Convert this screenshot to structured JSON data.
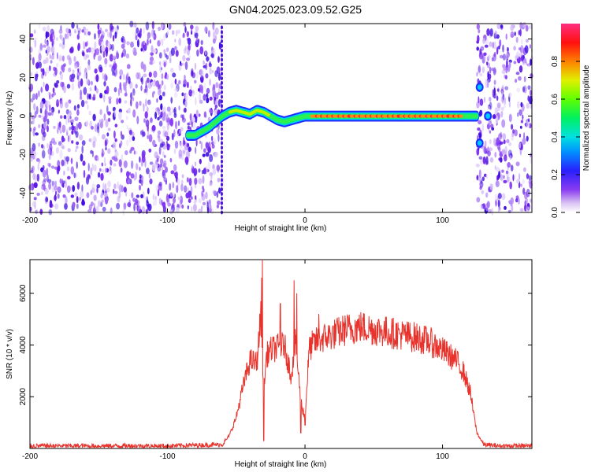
{
  "title": "GN04.2025.023.09.52.G25",
  "chart_data": [
    {
      "type": "heatmap",
      "xlabel": "Height of straight line (km)",
      "ylabel": "Frequency (Hz)",
      "xlim": [
        -200,
        165
      ],
      "ylim": [
        -50,
        48
      ],
      "xticks": [
        -200,
        -100,
        0,
        100
      ],
      "yticks": [
        -40,
        -20,
        0,
        20,
        40
      ],
      "xtick_labels": [
        "-200",
        "-100",
        "0",
        "100"
      ],
      "ytick_labels": [
        "-40",
        "-20",
        "0",
        "20",
        "40"
      ],
      "noise_regions": [
        [
          -200,
          -60
        ],
        [
          125,
          165
        ]
      ],
      "signal_track": {
        "x": [
          -85,
          -80,
          -75,
          -70,
          -65,
          -60,
          -55,
          -50,
          -45,
          -40,
          -35,
          -30,
          -25,
          -20,
          -15,
          -10,
          -5,
          0,
          10,
          20,
          40,
          60,
          80,
          100,
          110,
          120,
          125
        ],
        "y": [
          -10,
          -10,
          -8,
          -6,
          -3,
          0,
          2,
          3,
          2,
          1,
          3,
          2,
          0,
          -2,
          -3,
          -2,
          -1,
          0,
          0,
          0,
          0,
          0,
          0,
          0,
          0,
          0,
          0
        ]
      },
      "side_blobs": [
        [
          127,
          15
        ],
        [
          127,
          -14
        ],
        [
          133,
          0
        ]
      ],
      "colorbar": {
        "label": "Normalized spectral amplitude",
        "ticks": [
          0.0,
          0.2,
          0.4,
          0.6,
          0.8
        ],
        "tick_labels": [
          "0.0",
          "0.2",
          "0.4",
          "0.6",
          "0.8"
        ],
        "range": [
          0,
          1
        ]
      }
    },
    {
      "type": "line",
      "xlabel": "Height of straight line (km)",
      "ylabel": "SNR (10 * v/v)",
      "xlim": [
        -200,
        165
      ],
      "ylim": [
        0,
        7300
      ],
      "xticks": [
        -200,
        -100,
        0,
        100
      ],
      "yticks": [
        2000,
        4000,
        6000
      ],
      "xtick_labels": [
        "-200",
        "-100",
        "0",
        "100"
      ],
      "ytick_labels": [
        "2000",
        "4000",
        "6000"
      ],
      "color": "#e8322b",
      "envelope": {
        "x": [
          -200,
          -150,
          -100,
          -60,
          -55,
          -50,
          -45,
          -40,
          -35,
          -32,
          -30,
          -28,
          -25,
          -20,
          -15,
          -10,
          -7,
          -5,
          -3,
          0,
          3,
          5,
          10,
          20,
          30,
          40,
          50,
          60,
          70,
          80,
          90,
          100,
          110,
          115,
          120,
          125,
          130,
          140,
          150,
          165
        ],
        "y": [
          100,
          100,
          100,
          150,
          500,
          1200,
          2400,
          3400,
          3300,
          5200,
          2300,
          3600,
          3800,
          3900,
          4000,
          2800,
          4100,
          3000,
          1800,
          1200,
          3800,
          4000,
          4200,
          4400,
          4600,
          4700,
          4600,
          4500,
          4400,
          4300,
          4150,
          3800,
          3400,
          3000,
          2200,
          600,
          150,
          100,
          100,
          100
        ]
      },
      "spikes": [
        [
          -31,
          7300
        ],
        [
          -31.5,
          6600
        ],
        [
          -8,
          6500
        ],
        [
          -6,
          6000
        ],
        [
          -18,
          5600
        ],
        [
          10,
          5200
        ],
        [
          -30,
          300
        ],
        [
          -3,
          600
        ],
        [
          0,
          900
        ]
      ]
    }
  ]
}
